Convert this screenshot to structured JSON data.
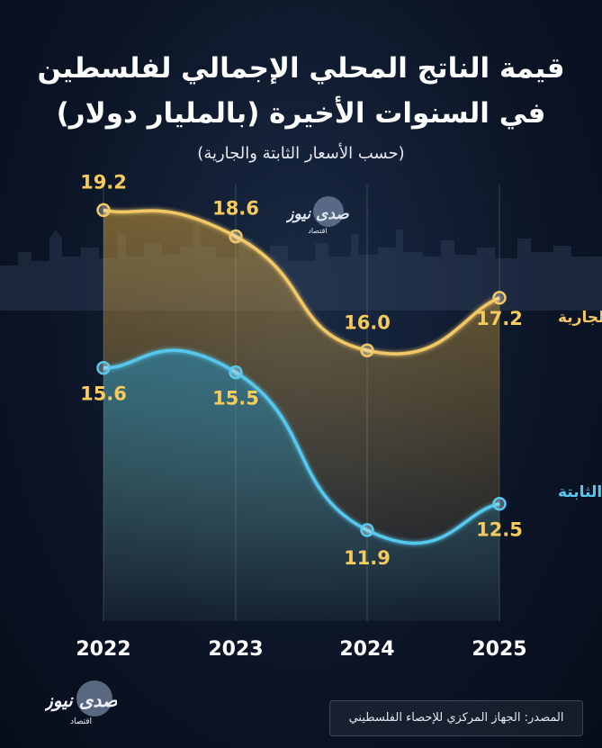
{
  "header": {
    "title_line1": "قيمة الناتج المحلي الإجمالي لفلسطين",
    "title_line2": "في السنوات الأخيرة (بالمليار دولار)",
    "subtitle": "(حسب الأسعار الثابتة والجارية)"
  },
  "brand": {
    "name": "صدى نيوز",
    "tagline": "اقتصاد"
  },
  "source": "المصدر: الجهاز المركزي للإحصاء الفلسطيني",
  "colors": {
    "current": "#f2c766",
    "constant": "#57c8ee",
    "label": "#f6cb5b",
    "background": "#0c1628"
  },
  "chart_data": {
    "type": "line",
    "title": "قيمة الناتج المحلي الإجمالي لفلسطين في السنوات الأخيرة (بالمليار دولار)",
    "categories": [
      "2022",
      "2023",
      "2024",
      "2025"
    ],
    "series": [
      {
        "name": "الأسعار الجارية",
        "values": [
          19.2,
          18.6,
          16.0,
          17.2
        ]
      },
      {
        "name": "الأسعار الثابتة",
        "values": [
          15.6,
          15.5,
          11.9,
          12.5
        ]
      }
    ],
    "ylabel": "",
    "xlabel": "",
    "ylim": [
      8.9,
      20.4
    ]
  }
}
